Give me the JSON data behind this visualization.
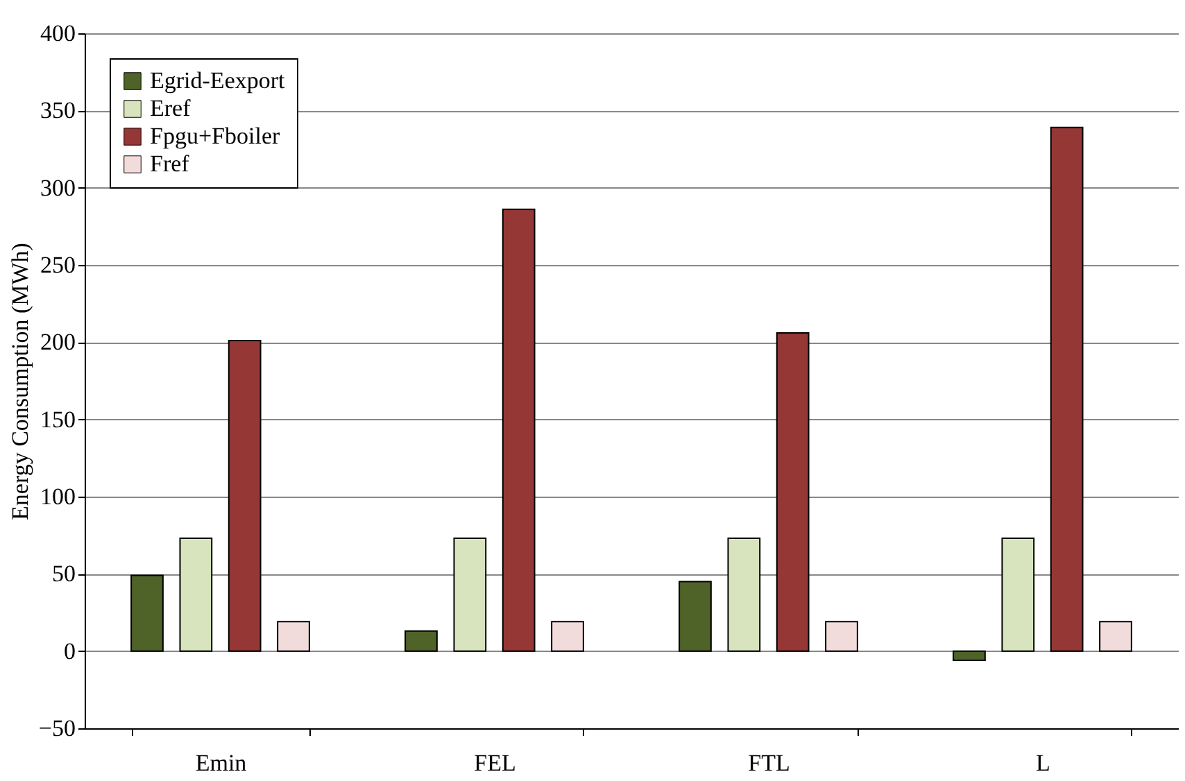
{
  "chart_data": {
    "type": "bar",
    "ylabel": "Energy Consumption (MWh)",
    "categories": [
      "Emin",
      "FEL",
      "FTL",
      "L"
    ],
    "series": [
      {
        "name": "Egrid-Eexport",
        "color": "#4f6228",
        "values": [
          49,
          13,
          45,
          -6
        ]
      },
      {
        "name": "Eref",
        "color": "#d7e4bd",
        "values": [
          73,
          73,
          73,
          73
        ]
      },
      {
        "name": "Fpgu+Fboiler",
        "color": "#953735",
        "values": [
          201,
          286,
          206,
          339
        ]
      },
      {
        "name": "Fref",
        "color": "#f2dcdb",
        "values": [
          19,
          19,
          19,
          19
        ]
      }
    ],
    "ylim": [
      -50,
      400
    ],
    "yticks": [
      -50,
      0,
      50,
      100,
      150,
      200,
      250,
      300,
      350,
      400
    ],
    "grid": "y",
    "legend": "top left"
  }
}
